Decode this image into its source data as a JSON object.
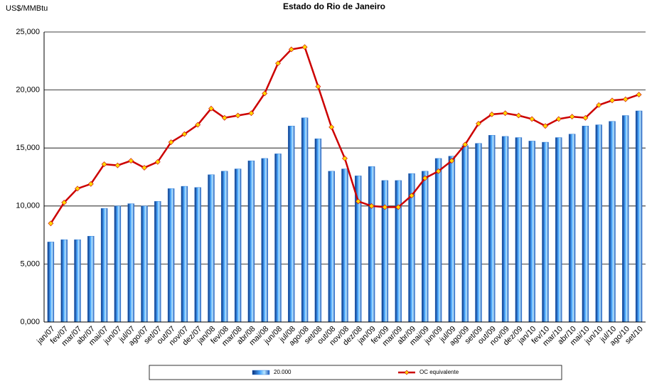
{
  "chart_data": {
    "type": "bar_line",
    "title": "Estado do Rio de Janeiro",
    "y_label": "US$/MMBtu",
    "categories": [
      "jan/07",
      "fev/07",
      "mar/07",
      "abr/07",
      "mai/07",
      "jun/07",
      "jul/07",
      "ago/07",
      "set/07",
      "out/07",
      "nov/07",
      "dez/07",
      "jan/08",
      "fev/08",
      "mar/08",
      "abr/08",
      "mai/08",
      "jun/08",
      "jul/08",
      "ago/08",
      "set/08",
      "out/08",
      "nov/08",
      "dez/08",
      "jan/09",
      "fev/09",
      "mar/09",
      "abr/09",
      "mai/09",
      "jun/09",
      "jul/09",
      "ago/09",
      "set/09",
      "out/09",
      "nov/09",
      "dez/09",
      "jan/10",
      "fev/10",
      "mar/10",
      "abr/10",
      "mai/10",
      "jun/10",
      "jul/10",
      "ago/10",
      "set/10"
    ],
    "series": [
      {
        "name": "20.000",
        "kind": "bar",
        "color": "#1f6fd0",
        "values": [
          6900,
          7100,
          7100,
          7400,
          9800,
          10000,
          10200,
          10000,
          10400,
          11500,
          11700,
          11600,
          12700,
          13000,
          13200,
          13900,
          14100,
          14500,
          16900,
          17600,
          15800,
          13000,
          13200,
          12600,
          13400,
          12200,
          12200,
          12800,
          13000,
          14100,
          14300,
          15200,
          15400,
          16100,
          16000,
          15900,
          15600,
          15500,
          15900,
          16200,
          16900,
          17000,
          17300,
          17800,
          18200
        ]
      },
      {
        "name": "OC equivalente",
        "kind": "line",
        "color": "#cc0000",
        "marker_color": "#ffd700",
        "values": [
          8500,
          10300,
          11500,
          11900,
          13600,
          13500,
          13900,
          13300,
          13800,
          15500,
          16200,
          17000,
          18400,
          17600,
          17800,
          18000,
          19700,
          22300,
          23500,
          23700,
          20300,
          16800,
          14100,
          10400,
          10000,
          9900,
          9900,
          10900,
          12400,
          13000,
          13900,
          15300,
          17100,
          17900,
          18000,
          17800,
          17500,
          16900,
          17500,
          17700,
          17600,
          18700,
          19100,
          19200,
          19600
        ]
      }
    ],
    "ylim": [
      0,
      25000
    ],
    "yticks": [
      {
        "value": 0,
        "label": "0,000"
      },
      {
        "value": 5000,
        "label": "5,000"
      },
      {
        "value": 10000,
        "label": "10,000"
      },
      {
        "value": 15000,
        "label": "15,000"
      },
      {
        "value": 20000,
        "label": "20,000"
      },
      {
        "value": 25000,
        "label": "25,000"
      }
    ],
    "grid": true
  }
}
